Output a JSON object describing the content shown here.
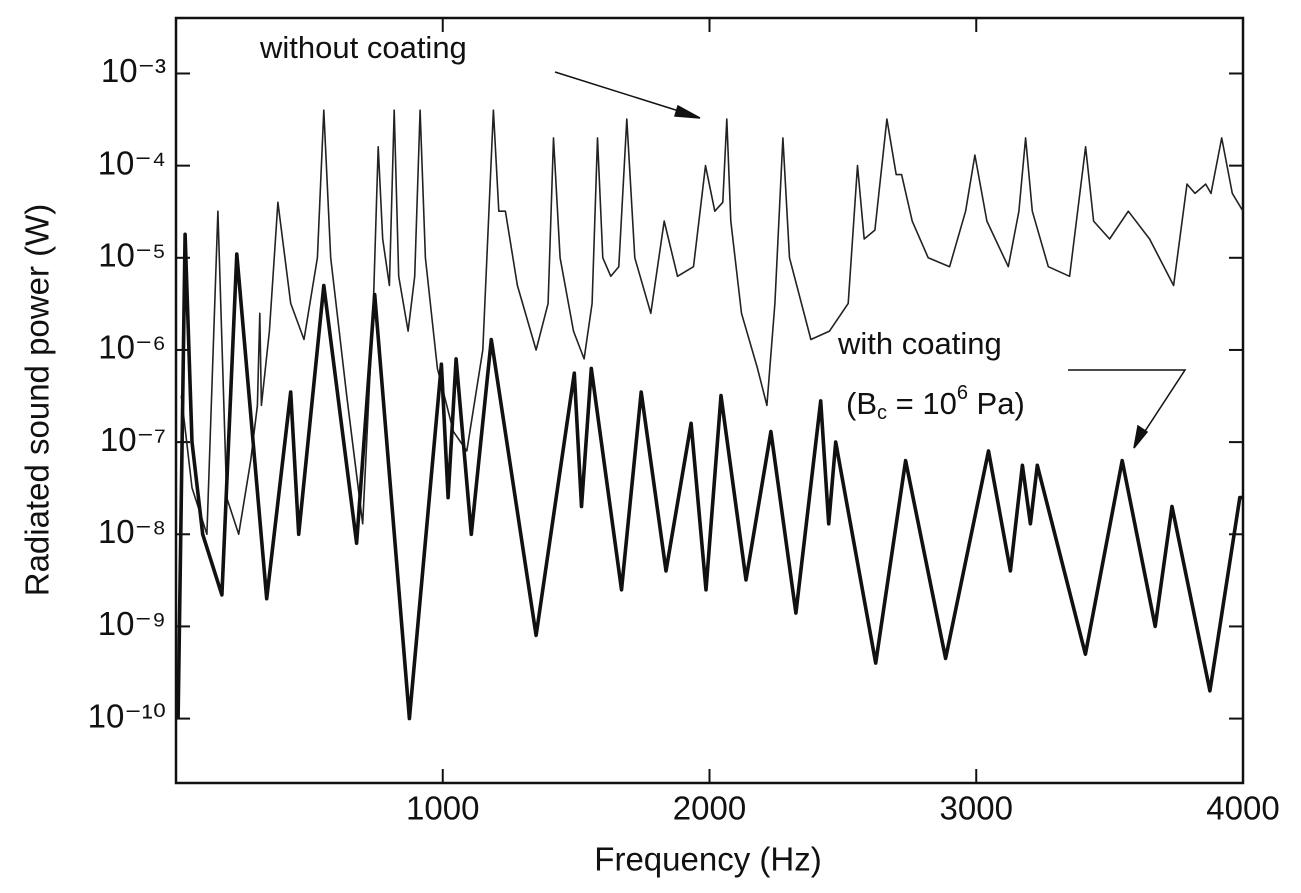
{
  "chart_data": {
    "type": "line",
    "xlabel": "Frequency (Hz)",
    "ylabel": "Radiated sound power (W)",
    "ylog": true,
    "xlim": [
      0,
      4000
    ],
    "ylim": [
      2e-11,
      0.004
    ],
    "xticks": [
      1000,
      2000,
      3000,
      4000
    ],
    "yticks": [
      {
        "value": 0.001,
        "label": "10⁻³"
      },
      {
        "value": 0.0001,
        "label": "10⁻⁴"
      },
      {
        "value": 1e-05,
        "label": "10⁻⁵"
      },
      {
        "value": 1e-06,
        "label": "10⁻⁶"
      },
      {
        "value": 1e-07,
        "label": "10⁻⁷"
      },
      {
        "value": 1e-08,
        "label": "10⁻⁸"
      },
      {
        "value": 1e-09,
        "label": "10⁻⁹"
      },
      {
        "value": 1e-10,
        "label": "10⁻¹⁰"
      }
    ],
    "annotation": {
      "parts": [
        "(B",
        "c",
        " = 10",
        "6",
        " Pa)"
      ]
    },
    "series": [
      {
        "name": "without coating",
        "color": "#222",
        "width": 1.6,
        "x": [
          20,
          60,
          116,
          157,
          190,
          235,
          280,
          305,
          314,
          320,
          350,
          382,
          430,
          480,
          530,
          554,
          580,
          640,
          700,
          740,
          758,
          775,
          800,
          818,
          835,
          870,
          895,
          915,
          935,
          980,
          1040,
          1090,
          1150,
          1190,
          1210,
          1235,
          1280,
          1350,
          1395,
          1415,
          1440,
          1490,
          1530,
          1560,
          1580,
          1600,
          1630,
          1660,
          1690,
          1720,
          1780,
          1830,
          1880,
          1940,
          1985,
          2020,
          2050,
          2065,
          2080,
          2120,
          2180,
          2215,
          2245,
          2275,
          2300,
          2380,
          2450,
          2520,
          2555,
          2580,
          2620,
          2665,
          2700,
          2720,
          2760,
          2820,
          2900,
          2960,
          2995,
          3040,
          3120,
          3160,
          3185,
          3210,
          3270,
          3350,
          3410,
          3440,
          3500,
          3570,
          3650,
          3740,
          3790,
          3820,
          3860,
          3880,
          3920,
          3960,
          4000
        ],
        "values": [
          3.2e-07,
          3.2e-08,
          1e-08,
          3.2e-05,
          2.5e-08,
          1e-08,
          6.3e-08,
          2.5e-07,
          2.5e-06,
          2.5e-07,
          1.6e-06,
          4e-05,
          3.2e-06,
          1.3e-06,
          1e-05,
          0.0004,
          1e-05,
          3.2e-07,
          1.3e-08,
          3.2e-06,
          0.00016,
          1.6e-05,
          5e-06,
          0.0004,
          6.3e-06,
          1.6e-06,
          6.3e-06,
          0.0004,
          1e-05,
          6.3e-07,
          1.3e-07,
          8e-08,
          1e-06,
          0.0004,
          3.2e-05,
          3.2e-05,
          5e-06,
          1e-06,
          3.2e-06,
          0.0002,
          1e-05,
          1.6e-06,
          8e-07,
          3.2e-06,
          0.0002,
          1e-05,
          6.3e-06,
          8e-06,
          0.00032,
          1e-05,
          2.5e-06,
          2.5e-05,
          6.3e-06,
          8e-06,
          0.0001,
          3.2e-05,
          4e-05,
          0.00032,
          2.5e-05,
          2.5e-06,
          6.3e-07,
          2.5e-07,
          3.2e-06,
          0.0002,
          1e-05,
          1.3e-06,
          1.6e-06,
          3.2e-06,
          0.0001,
          1.6e-05,
          2e-05,
          0.00032,
          8e-05,
          8e-05,
          2.5e-05,
          1e-05,
          8e-06,
          3.2e-05,
          0.00013,
          2.5e-05,
          8e-06,
          3.2e-05,
          0.0002,
          3.2e-05,
          8e-06,
          6.3e-06,
          0.00016,
          2.5e-05,
          1.6e-05,
          3.2e-05,
          1.6e-05,
          5e-06,
          6.3e-05,
          5e-05,
          6.3e-05,
          5e-05,
          0.0002,
          5e-05,
          3.2e-05
        ]
      },
      {
        "name": "with coating",
        "color": "#111",
        "width": 3.6,
        "x": [
          8,
          34,
          60,
          100,
          172,
          228,
          340,
          430,
          460,
          554,
          677,
          745,
          875,
          995,
          1020,
          1050,
          1107,
          1182,
          1350,
          1493,
          1520,
          1557,
          1670,
          1744,
          1837,
          1931,
          1987,
          2043,
          2137,
          2230,
          2324,
          2417,
          2447,
          2473,
          2623,
          2735,
          2885,
          3046,
          3128,
          3173,
          3203,
          3229,
          3409,
          3547,
          3671,
          3734,
          3876,
          3988,
          4000
        ],
        "values": [
          1e-10,
          1.8e-05,
          1e-07,
          1e-08,
          2.2e-09,
          1.1e-05,
          2e-09,
          3.5e-07,
          1e-08,
          5e-06,
          8e-09,
          4e-06,
          1e-10,
          7e-07,
          2.5e-08,
          8e-07,
          1e-08,
          1.3e-06,
          8e-10,
          5.6e-07,
          2e-08,
          6.3e-07,
          2.5e-09,
          3.5e-07,
          4e-09,
          1.6e-07,
          2.5e-09,
          3.2e-07,
          3.2e-09,
          1.3e-07,
          1.4e-09,
          2.8e-07,
          1.3e-08,
          1e-07,
          4e-10,
          6.3e-08,
          4.5e-10,
          8e-08,
          4e-09,
          5.6e-08,
          1.3e-08,
          5.6e-08,
          5e-10,
          6.3e-08,
          1e-09,
          2e-08,
          2e-10,
          2.5e-08,
          2.5e-08
        ]
      }
    ]
  }
}
